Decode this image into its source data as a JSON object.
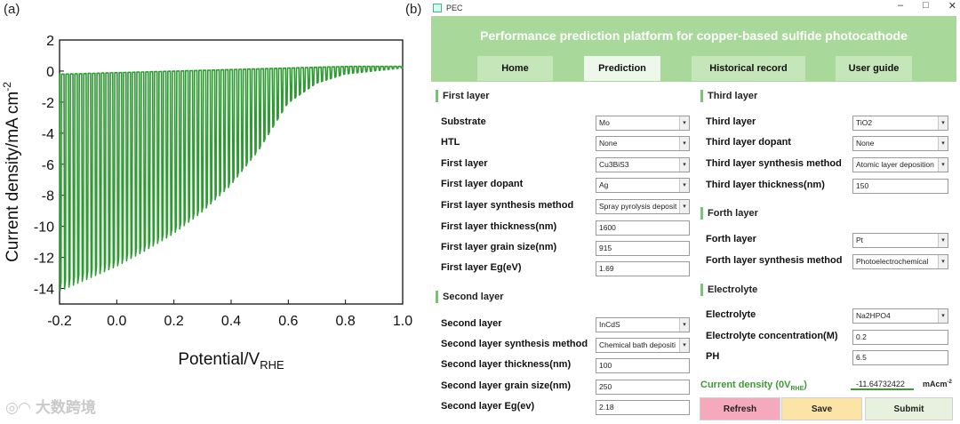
{
  "figure": {
    "label_a": "(a)",
    "label_b": "(b)",
    "watermark": "大数跨境"
  },
  "chart_data": {
    "type": "line",
    "xlabel": "Potential/V",
    "xlabel_sub": "RHE",
    "ylabel": "Current density/mA cm",
    "ylabel_sup": "-2",
    "xlim": [
      -0.2,
      1.0
    ],
    "ylim": [
      -15,
      2
    ],
    "xticks": [
      "-0.2",
      "0.0",
      "0.2",
      "0.4",
      "0.6",
      "0.8",
      "1.0"
    ],
    "yticks": [
      "2",
      "0",
      "-2",
      "-4",
      "-6",
      "-8",
      "-10",
      "-12",
      "-14"
    ],
    "grid": false,
    "series": [
      {
        "color": "#2e9a32",
        "dark_envelope": {
          "x": [
            -0.2,
            -0.1,
            0.0,
            0.1,
            0.2,
            0.3,
            0.4,
            0.5,
            0.6,
            0.7,
            0.8,
            0.9,
            1.0
          ],
          "y": [
            -0.2,
            -0.15,
            -0.1,
            -0.05,
            0.0,
            0.05,
            0.1,
            0.15,
            0.2,
            0.25,
            0.3,
            0.3,
            0.3
          ]
        },
        "light_envelope": {
          "x": [
            -0.2,
            -0.1,
            0.0,
            0.1,
            0.2,
            0.3,
            0.4,
            0.5,
            0.6,
            0.7,
            0.8,
            0.9,
            1.0
          ],
          "y": [
            -14.2,
            -13.4,
            -12.6,
            -11.6,
            -10.5,
            -9.1,
            -7.4,
            -5.1,
            -2.1,
            -0.8,
            -0.2,
            0.0,
            0.2
          ]
        },
        "chop_period_v": 0.0155
      }
    ]
  },
  "window": {
    "title": "PEC",
    "controls": [
      "–",
      "□",
      "✕"
    ],
    "banner_title": "Performance prediction platform for copper-based sulfide photocathode",
    "tabs": [
      "Home",
      "Prediction",
      "Historical record",
      "User guide"
    ],
    "active_tab": "Prediction",
    "sections": {
      "first": "First layer",
      "second": "Second layer",
      "third": "Third layer",
      "forth": "Forth layer",
      "electrolyte": "Electrolyte"
    },
    "left_rows": [
      {
        "label": "Substrate",
        "value": "Mo",
        "kind": "combo"
      },
      {
        "label": "HTL",
        "value": "None",
        "kind": "combo"
      },
      {
        "label": "First layer",
        "value": "Cu3BiS3",
        "kind": "combo"
      },
      {
        "label": "First layer dopant",
        "value": "Ag",
        "kind": "combo"
      },
      {
        "label": "First layer synthesis method",
        "value": "Spray pyrolysis deposit",
        "kind": "combo"
      },
      {
        "label": "First layer thickness(nm)",
        "value": "1600",
        "kind": "field"
      },
      {
        "label": "First layer grain size(nm)",
        "value": "915",
        "kind": "field"
      },
      {
        "label": "First layer Eg(eV)",
        "value": "1.69",
        "kind": "field"
      },
      {
        "label": "Second layer",
        "value": "InCdS",
        "kind": "combo"
      },
      {
        "label": "Second layer synthesis method",
        "value": "Chemical bath depositi",
        "kind": "combo"
      },
      {
        "label": "Second layer thickness(nm)",
        "value": "100",
        "kind": "field"
      },
      {
        "label": "Second layer grain size(nm)",
        "value": "250",
        "kind": "field"
      },
      {
        "label": "Second layer Eg(ev)",
        "value": "2.18",
        "kind": "field"
      }
    ],
    "right_rows": [
      {
        "label": "Third layer",
        "value": "TiO2",
        "kind": "combo"
      },
      {
        "label": "Third layer dopant",
        "value": "None",
        "kind": "combo"
      },
      {
        "label": "Third layer synthesis method",
        "value": "Atomic layer deposition",
        "kind": "combo"
      },
      {
        "label": "Third layer thickness(nm)",
        "value": "150",
        "kind": "field"
      },
      {
        "label": "Forth layer",
        "value": "Pt",
        "kind": "combo"
      },
      {
        "label": "Forth layer synthesis method",
        "value": "Photoelectrochemical",
        "kind": "combo"
      },
      {
        "label": "Electrolyte",
        "value": "Na2HPO4",
        "kind": "combo"
      },
      {
        "label": "Electrolyte concentration(M)",
        "value": "0.2",
        "kind": "field"
      },
      {
        "label": "PH",
        "value": "6.5",
        "kind": "field"
      }
    ],
    "result": {
      "label": "Current density (0V",
      "label_sub": "RHE",
      "label_close": ")",
      "value": "-11.64732422",
      "unit": "mAcm",
      "unit_sup": "-2"
    },
    "buttons": {
      "refresh": "Refresh",
      "save": "Save",
      "submit": "Submit"
    },
    "colors": {
      "banner": "#a9d99a",
      "refresh": "#f5a9bd",
      "save": "#fbe4a6",
      "submit": "#e6f2de",
      "accent": "#3e9a36"
    }
  }
}
